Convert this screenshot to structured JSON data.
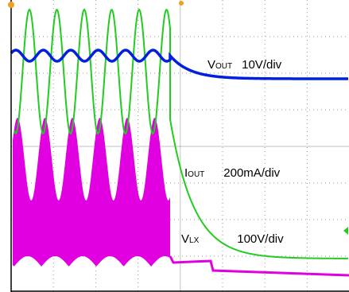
{
  "labels": [
    {
      "symbol": "V",
      "subscript": "OUT",
      "scale": "10V/div"
    },
    {
      "symbol": "I",
      "subscript": "OUT",
      "scale": "200mA/div"
    },
    {
      "symbol": "V",
      "subscript": "LX",
      "scale": "100V/div"
    }
  ]
}
